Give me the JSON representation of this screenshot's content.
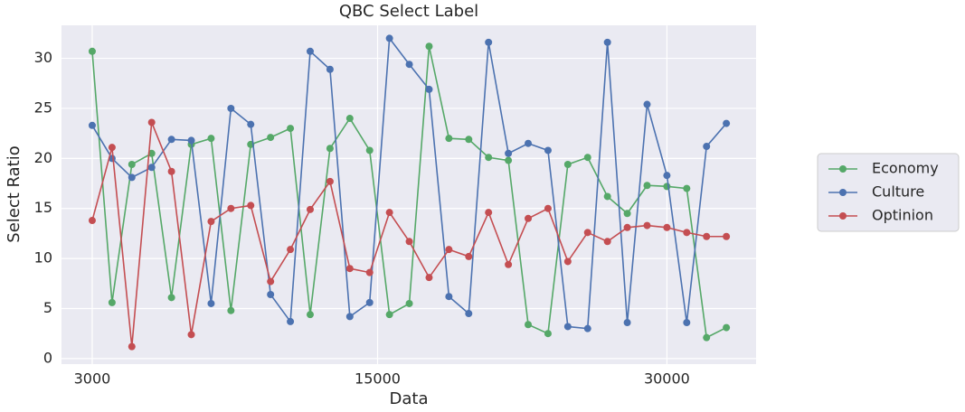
{
  "chart_data": {
    "type": "line",
    "title": "QBC Select Label",
    "xlabel": "Data",
    "ylabel": "Select Ratio",
    "categories": [
      null,
      null,
      null,
      null,
      null,
      null,
      null,
      null,
      null,
      null,
      null,
      null,
      null,
      null,
      null,
      null,
      null,
      null,
      null,
      null,
      null,
      null,
      null,
      null,
      null,
      null,
      null,
      null,
      null,
      null,
      null,
      null,
      null
    ],
    "series": [
      {
        "name": "Economy",
        "color": "#55a868",
        "values": [
          30.7,
          5.6,
          19.4,
          20.5,
          6.1,
          21.4,
          22.0,
          4.8,
          21.4,
          22.1,
          23.0,
          4.4,
          21.0,
          24.0,
          20.8,
          4.4,
          5.5,
          31.2,
          22.0,
          21.9,
          20.1,
          19.8,
          3.4,
          2.5,
          19.4,
          20.1,
          16.2,
          14.5,
          17.3,
          17.2,
          17.0,
          2.1,
          3.1
        ]
      },
      {
        "name": "Culture",
        "color": "#4c72b0",
        "values": [
          23.3,
          20.0,
          18.1,
          19.1,
          21.9,
          21.8,
          5.5,
          25.0,
          23.4,
          6.4,
          3.7,
          30.7,
          28.9,
          4.2,
          5.6,
          32.0,
          29.4,
          26.9,
          6.2,
          4.5,
          31.6,
          20.5,
          21.5,
          20.8,
          3.2,
          3.0,
          31.6,
          3.6,
          25.4,
          18.3,
          3.6,
          21.2,
          23.5
        ]
      },
      {
        "name": "Optinion",
        "color": "#c44e52",
        "values": [
          13.8,
          21.1,
          1.2,
          23.6,
          18.7,
          2.4,
          13.7,
          15.0,
          15.3,
          7.7,
          10.9,
          14.9,
          17.7,
          9.0,
          8.6,
          14.6,
          11.7,
          8.1,
          10.9,
          10.2,
          14.6,
          9.4,
          14.0,
          15.0,
          9.7,
          12.6,
          11.7,
          13.1,
          13.3,
          13.1,
          12.6,
          12.2,
          12.2
        ]
      }
    ],
    "xlim": [
      -1.55,
      33.5
    ],
    "xticks": [
      {
        "value": 0,
        "label": "3000"
      },
      {
        "value": 14.4,
        "label": "15000"
      },
      {
        "value": 29,
        "label": "30000"
      }
    ],
    "ylim": [
      -0.55,
      33.3
    ],
    "yticks": [
      0,
      5,
      10,
      15,
      20,
      25,
      30
    ],
    "grid": true,
    "legend": "right"
  }
}
